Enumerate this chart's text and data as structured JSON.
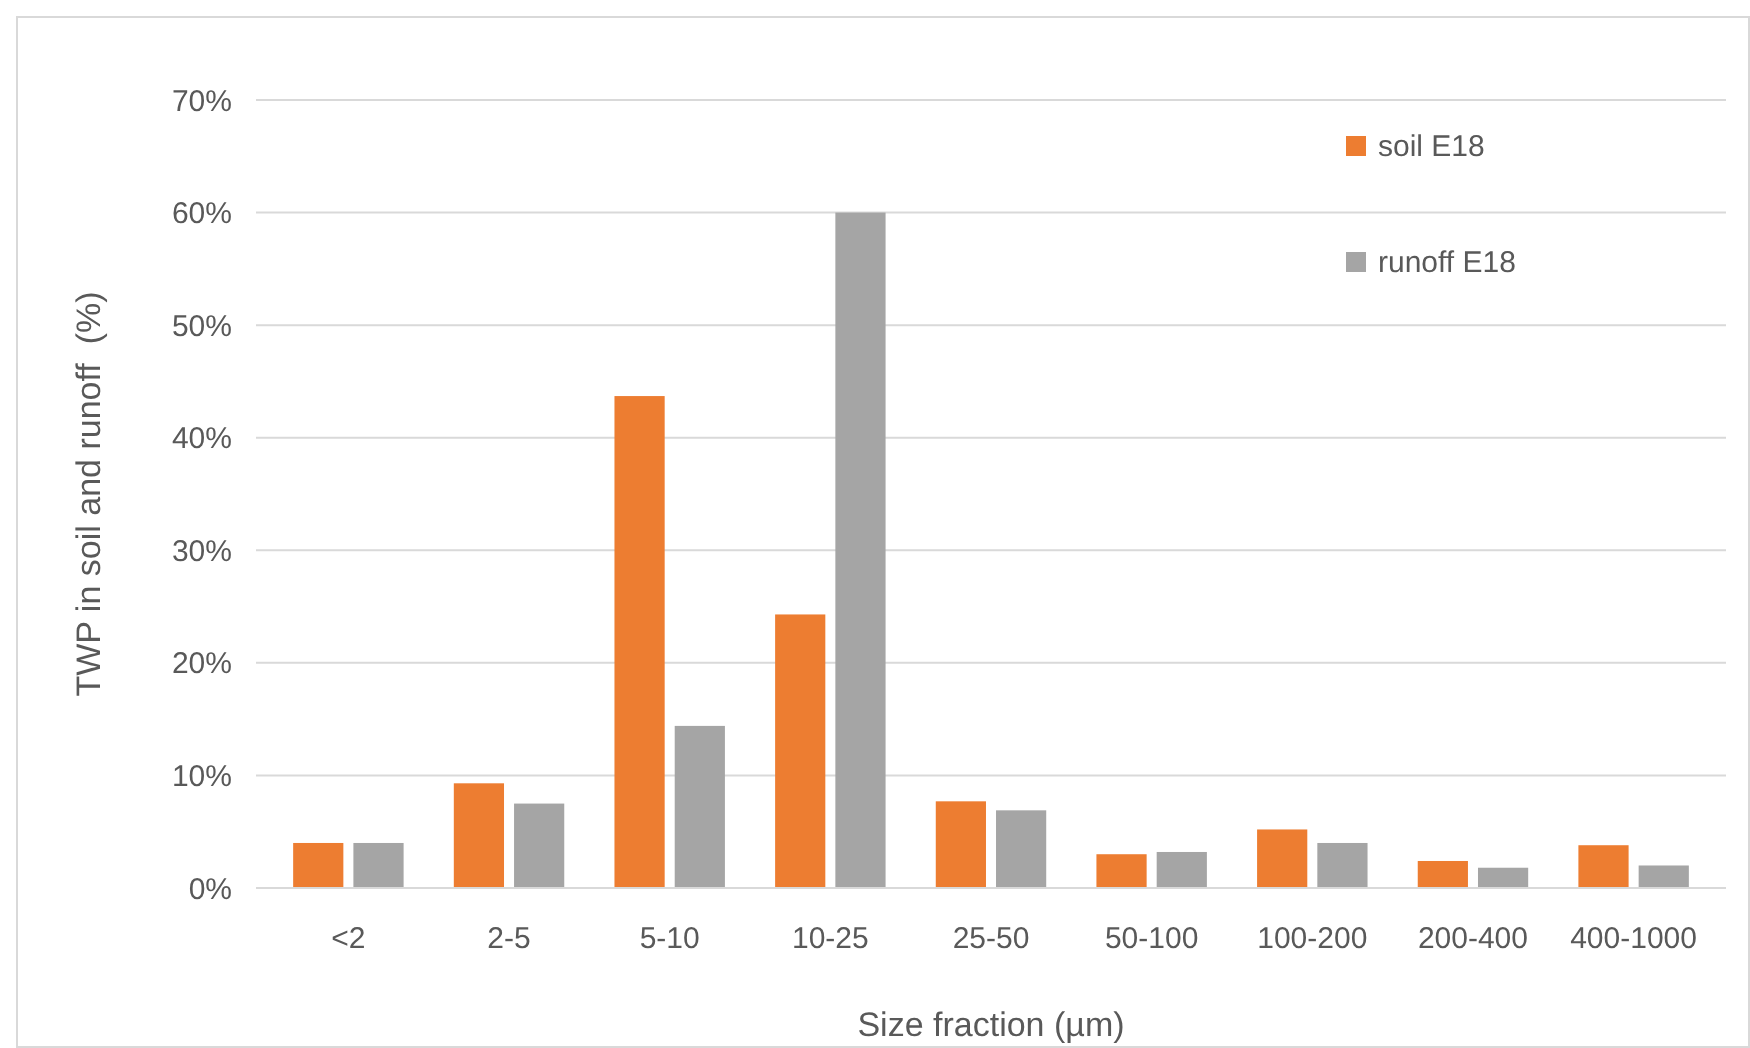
{
  "chart_data": {
    "type": "bar",
    "xlabel": "Size fraction (µm)",
    "ylabel": "TWP in soil and runoff  (%)",
    "categories": [
      "<2",
      "2-5",
      "5-10",
      "10-25",
      "25-50",
      "50-100",
      "100-200",
      "200-400",
      "400-1000"
    ],
    "series": [
      {
        "name": "soil E18",
        "color": "#ed7d31",
        "values": [
          4,
          9.3,
          43.7,
          24.3,
          7.7,
          3,
          5.2,
          2.4,
          3.8
        ]
      },
      {
        "name": "runoff E18",
        "color": "#a5a5a5",
        "values": [
          4,
          7.5,
          14.4,
          60,
          6.9,
          3.2,
          4,
          1.8,
          2
        ]
      }
    ],
    "ylim": [
      0,
      70
    ],
    "yticks": [
      {
        "value": 0,
        "label": "0%"
      },
      {
        "value": 10,
        "label": "10%"
      },
      {
        "value": 20,
        "label": "20%"
      },
      {
        "value": 30,
        "label": "30%"
      },
      {
        "value": 40,
        "label": "40%"
      },
      {
        "value": 50,
        "label": "50%"
      },
      {
        "value": 60,
        "label": "60%"
      },
      {
        "value": 70,
        "label": "70%"
      }
    ],
    "grid": "y",
    "legend": "top right"
  }
}
